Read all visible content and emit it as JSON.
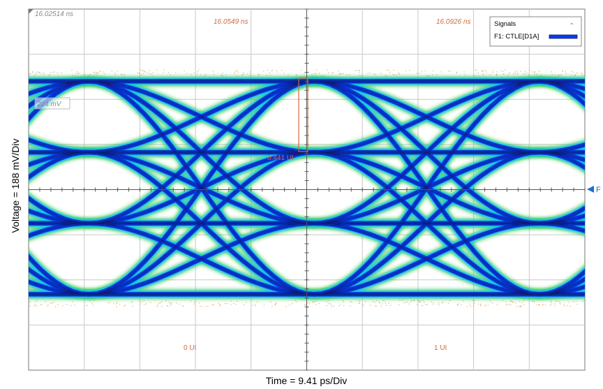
{
  "chart_data": {
    "type": "eye-diagram",
    "top_time": "16.02514 ns",
    "cursor_times": [
      "16.0549 ns",
      "16.0926 ns"
    ],
    "level_label": "224 mV",
    "eye_height_label": "0.441 UI",
    "ui_labels": [
      "0 UI",
      "1 UI"
    ],
    "xlabel": "Time = 9.41 ps/Div",
    "ylabel": "Voltage = 188 mV/Div",
    "legend": {
      "title": "Signals",
      "entry": "F1: CTLE[D1A]",
      "position": "top-right"
    },
    "marker_label": "F",
    "grid": true,
    "divisions": {
      "x": 10,
      "y": 8
    },
    "levels": 4,
    "colors": {
      "trace": "#0a3cf2",
      "core": "#0a1660",
      "glow": "#12c6f0",
      "edge": "#35c93c",
      "noise": "#e0a878",
      "cursor": "#d06a40"
    }
  }
}
